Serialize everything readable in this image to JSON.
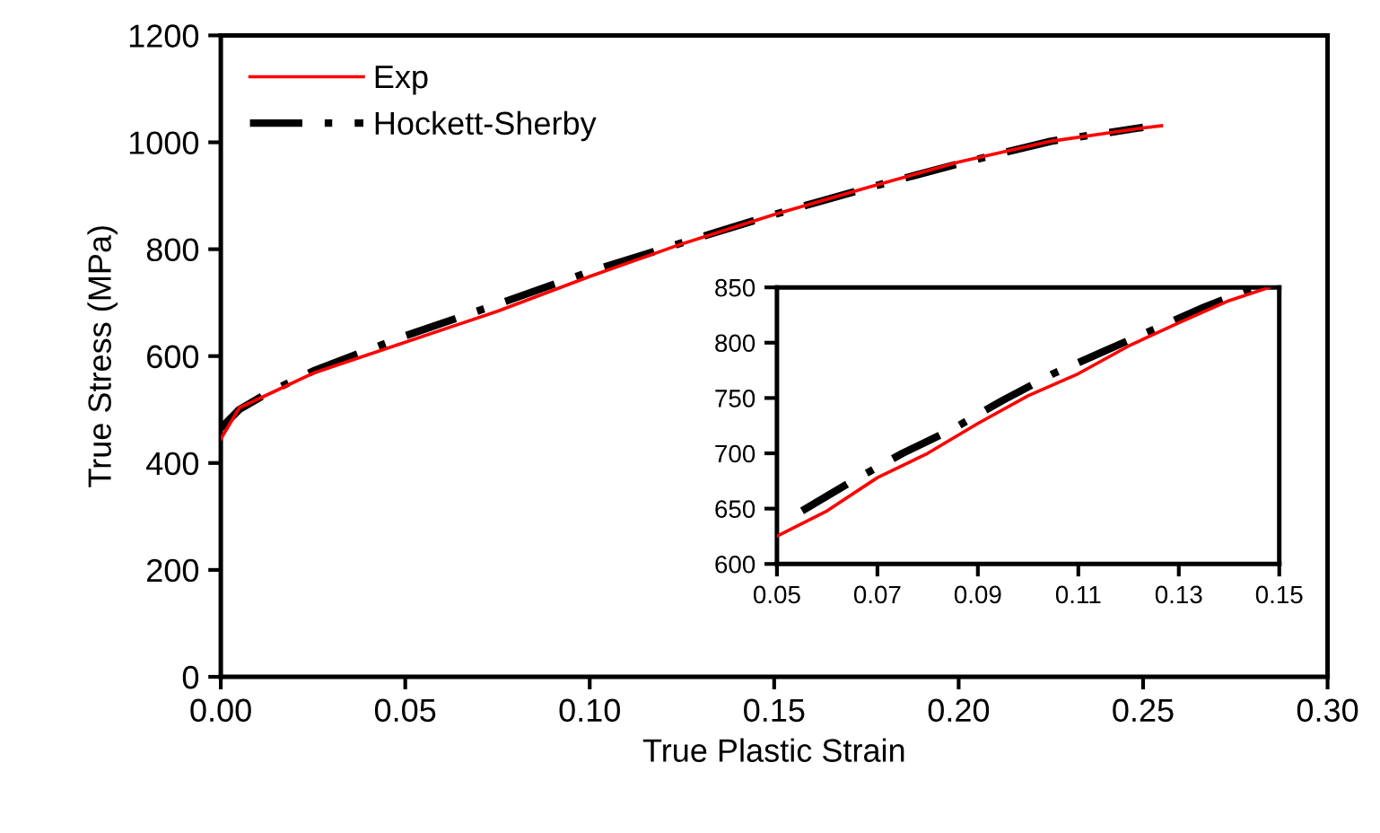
{
  "chart_data": [
    {
      "type": "line",
      "xlabel": "True Plastic Strain",
      "ylabel": "True Stress (MPa)",
      "xlim": [
        0,
        0.3
      ],
      "ylim": [
        0,
        1200
      ],
      "xticks": [
        {
          "value": 0,
          "label": "0.00"
        },
        0.05,
        {
          "value": 0.1,
          "label": "0.10"
        },
        0.15,
        {
          "value": 0.2,
          "label": "0.20"
        },
        0.25,
        {
          "value": 0.3,
          "label": "0.30"
        }
      ],
      "yticks": [
        0,
        200,
        400,
        600,
        800,
        1000,
        1200
      ],
      "legend": "top left",
      "grid": false,
      "marker": "none",
      "series": [
        {
          "name": "Exp",
          "color": "#ff0000",
          "line_style": "solid",
          "x": [
            0,
            0.005,
            0.013,
            0.025,
            0.05,
            0.075,
            0.1,
            0.125,
            0.15,
            0.175,
            0.2,
            0.225,
            0.25,
            0.255
          ],
          "values": [
            445,
            503,
            529,
            568,
            626,
            684,
            749,
            810,
            865,
            915,
            963,
            1002,
            1027,
            1031
          ]
        },
        {
          "name": "Hockett-Sherby",
          "color": "#000000",
          "line_style": "dashed",
          "x": [
            0,
            0.005,
            0.013,
            0.025,
            0.05,
            0.075,
            0.1,
            0.125,
            0.15,
            0.175,
            0.2,
            0.225,
            0.25
          ],
          "values": [
            465,
            500,
            532,
            572,
            638,
            697,
            758,
            812,
            865,
            914,
            960,
            1002,
            1028
          ]
        }
      ]
    },
    {
      "type": "line",
      "xlim": [
        0.05,
        0.15
      ],
      "ylim": [
        600,
        850
      ],
      "xticks": [
        0.05,
        0.07,
        0.09,
        0.11,
        0.13,
        0.15
      ],
      "yticks": [
        600,
        650,
        700,
        750,
        800,
        850
      ],
      "grid": false,
      "marker": "none",
      "series": [
        {
          "color": "#ff0000",
          "line_style": "solid",
          "x": [
            0.05,
            0.06,
            0.07,
            0.08,
            0.09,
            0.1,
            0.11,
            0.12,
            0.13,
            0.14,
            0.148
          ],
          "values": [
            625,
            648,
            678,
            700,
            727,
            752,
            772,
            797,
            818,
            838,
            850
          ]
        },
        {
          "color": "#000000",
          "line_style": "dashed",
          "x": [
            0.055,
            0.065,
            0.075,
            0.085,
            0.095,
            0.105,
            0.115,
            0.125,
            0.135,
            0.145
          ],
          "values": [
            648,
            675,
            700,
            722,
            748,
            772,
            792,
            812,
            832,
            850
          ]
        }
      ]
    }
  ]
}
